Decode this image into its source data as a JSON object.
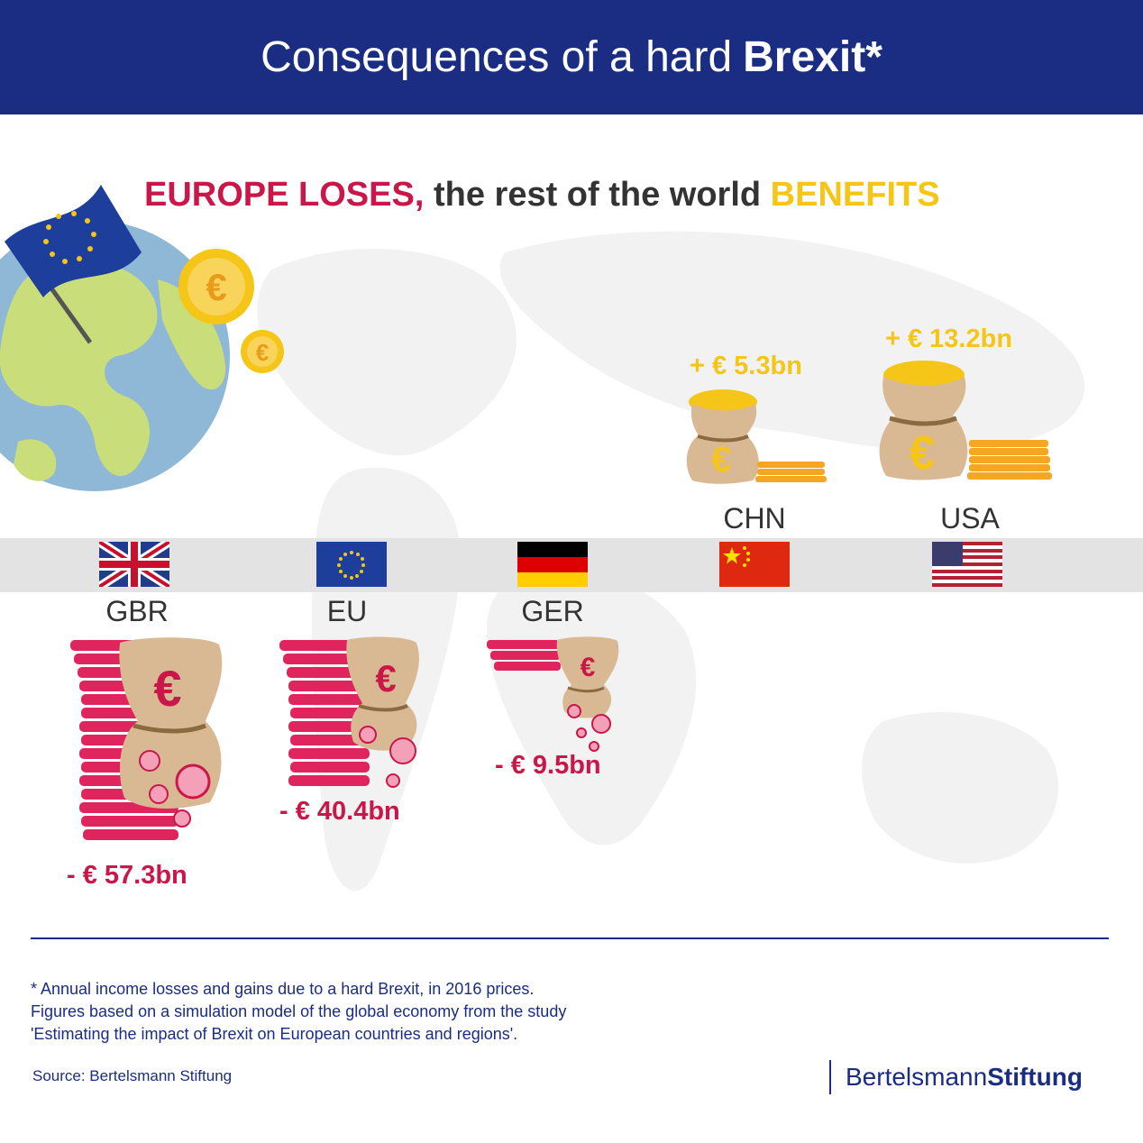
{
  "header": {
    "title_regular": "Consequences of a hard",
    "title_bold": "Brexit*"
  },
  "subtitle": {
    "lose": "EUROPE LOSES,",
    "middle": "the rest of the world",
    "win": "BENEFITS"
  },
  "countries": [
    {
      "code": "GBR",
      "value": "- € 57.3bn",
      "kind": "loss"
    },
    {
      "code": "EU",
      "value": "- € 40.4bn",
      "kind": "loss"
    },
    {
      "code": "GER",
      "value": "- € 9.5bn",
      "kind": "loss"
    },
    {
      "code": "CHN",
      "value": "+ € 5.3bn",
      "kind": "gain"
    },
    {
      "code": "USA",
      "value": "+ € 13.2bn",
      "kind": "gain"
    }
  ],
  "footnote": {
    "line1": "* Annual income losses and gains due to a hard Brexit, in 2016 prices.",
    "line2": "Figures based on a simulation model of the global economy from the study",
    "line3": "'Estimating the impact of Brexit on European countries and regions'."
  },
  "source": "Source: Bertelsmann Stiftung",
  "brand": {
    "regular": "Bertelsmann",
    "bold": "Stiftung"
  },
  "icons": {
    "coin_symbol": "€"
  },
  "colors": {
    "navy": "#1a2d82",
    "loss": "#c9174a",
    "gain": "#f5c518"
  }
}
